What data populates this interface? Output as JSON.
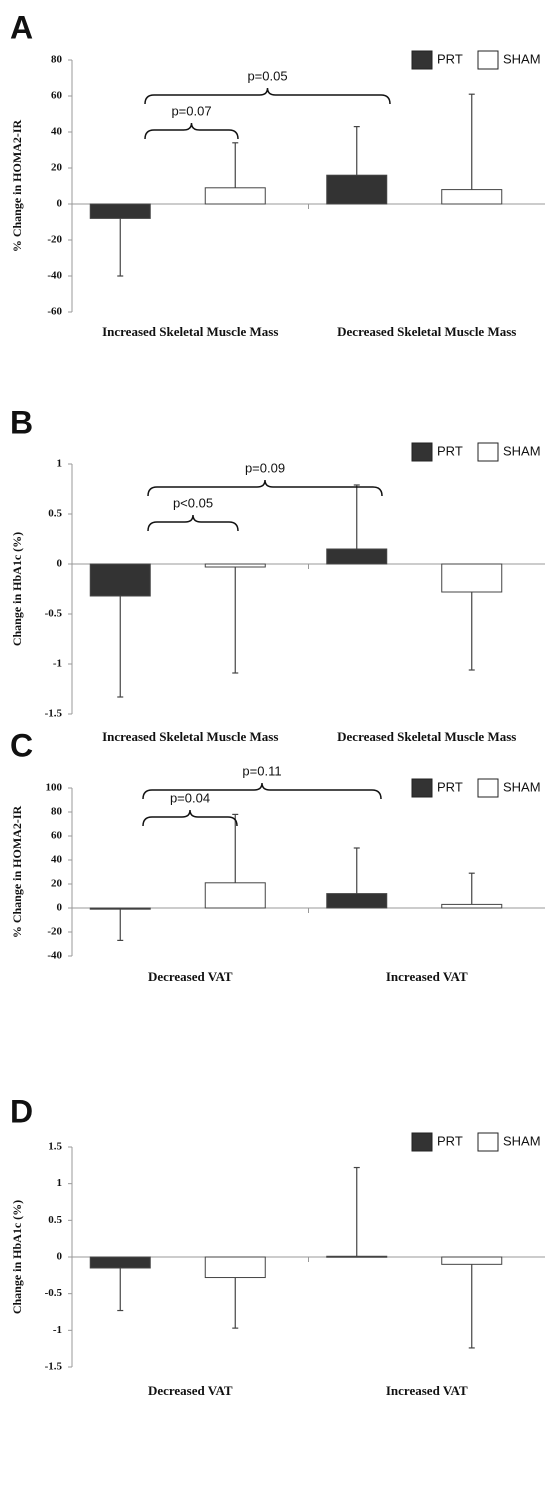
{
  "chart_data": [
    {
      "type": "bar",
      "panel": "A",
      "y_label": "% Change in HOMA2-IR",
      "categories": [
        "Increased Skeletal Muscle Mass",
        "Decreased Skeletal Muscle Mass"
      ],
      "series": [
        {
          "name": "PRT",
          "color": "#333333",
          "values": [
            -8,
            16
          ],
          "errors": [
            32,
            27
          ]
        },
        {
          "name": "SHAM",
          "color": "#ffffff",
          "values": [
            9,
            8
          ],
          "errors": [
            25,
            53
          ]
        }
      ],
      "ylim": [
        -60,
        80
      ],
      "yticks": [
        -60,
        -40,
        -20,
        0,
        20,
        40,
        60,
        80
      ],
      "annotations": [
        "p=0.07",
        "p=0.05"
      ]
    },
    {
      "type": "bar",
      "panel": "B",
      "y_label": "Change in HbA1c (%)",
      "categories": [
        "Increased Skeletal Muscle Mass",
        "Decreased Skeletal Muscle Mass"
      ],
      "series": [
        {
          "name": "PRT",
          "color": "#333333",
          "values": [
            -0.32,
            0.15
          ],
          "errors": [
            1.01,
            0.64
          ]
        },
        {
          "name": "SHAM",
          "color": "#ffffff",
          "values": [
            -0.03,
            -0.28
          ],
          "errors": [
            1.06,
            0.78
          ]
        }
      ],
      "ylim": [
        -1.5,
        1
      ],
      "yticks": [
        -1.5,
        -1,
        -0.5,
        0,
        0.5,
        1
      ],
      "annotations": [
        "p<0.05",
        "p=0.09"
      ]
    },
    {
      "type": "bar",
      "panel": "C",
      "y_label": "% Change in HOMA2-IR",
      "categories": [
        "Decreased VAT",
        "Increased VAT"
      ],
      "series": [
        {
          "name": "PRT",
          "color": "#333333",
          "values": [
            -1,
            12
          ],
          "errors": [
            26,
            38
          ]
        },
        {
          "name": "SHAM",
          "color": "#ffffff",
          "values": [
            21,
            3
          ],
          "errors": [
            57,
            26
          ]
        }
      ],
      "ylim": [
        -40,
        100
      ],
      "yticks": [
        -40,
        -20,
        0,
        20,
        40,
        60,
        80,
        100
      ],
      "annotations": [
        "p=0.04",
        "p=0.11"
      ]
    },
    {
      "type": "bar",
      "panel": "D",
      "y_label": "Change in HbA1c (%)",
      "categories": [
        "Decreased VAT",
        "Increased VAT"
      ],
      "series": [
        {
          "name": "PRT",
          "color": "#333333",
          "values": [
            -0.15,
            0.01
          ],
          "errors": [
            0.58,
            1.21
          ]
        },
        {
          "name": "SHAM",
          "color": "#ffffff",
          "values": [
            -0.28,
            -0.1
          ],
          "errors": [
            0.69,
            1.14
          ]
        }
      ],
      "ylim": [
        -1.5,
        1.5
      ],
      "yticks": [
        -1.5,
        -1,
        -0.5,
        0,
        0.5,
        1,
        1.5
      ],
      "annotations": []
    }
  ]
}
